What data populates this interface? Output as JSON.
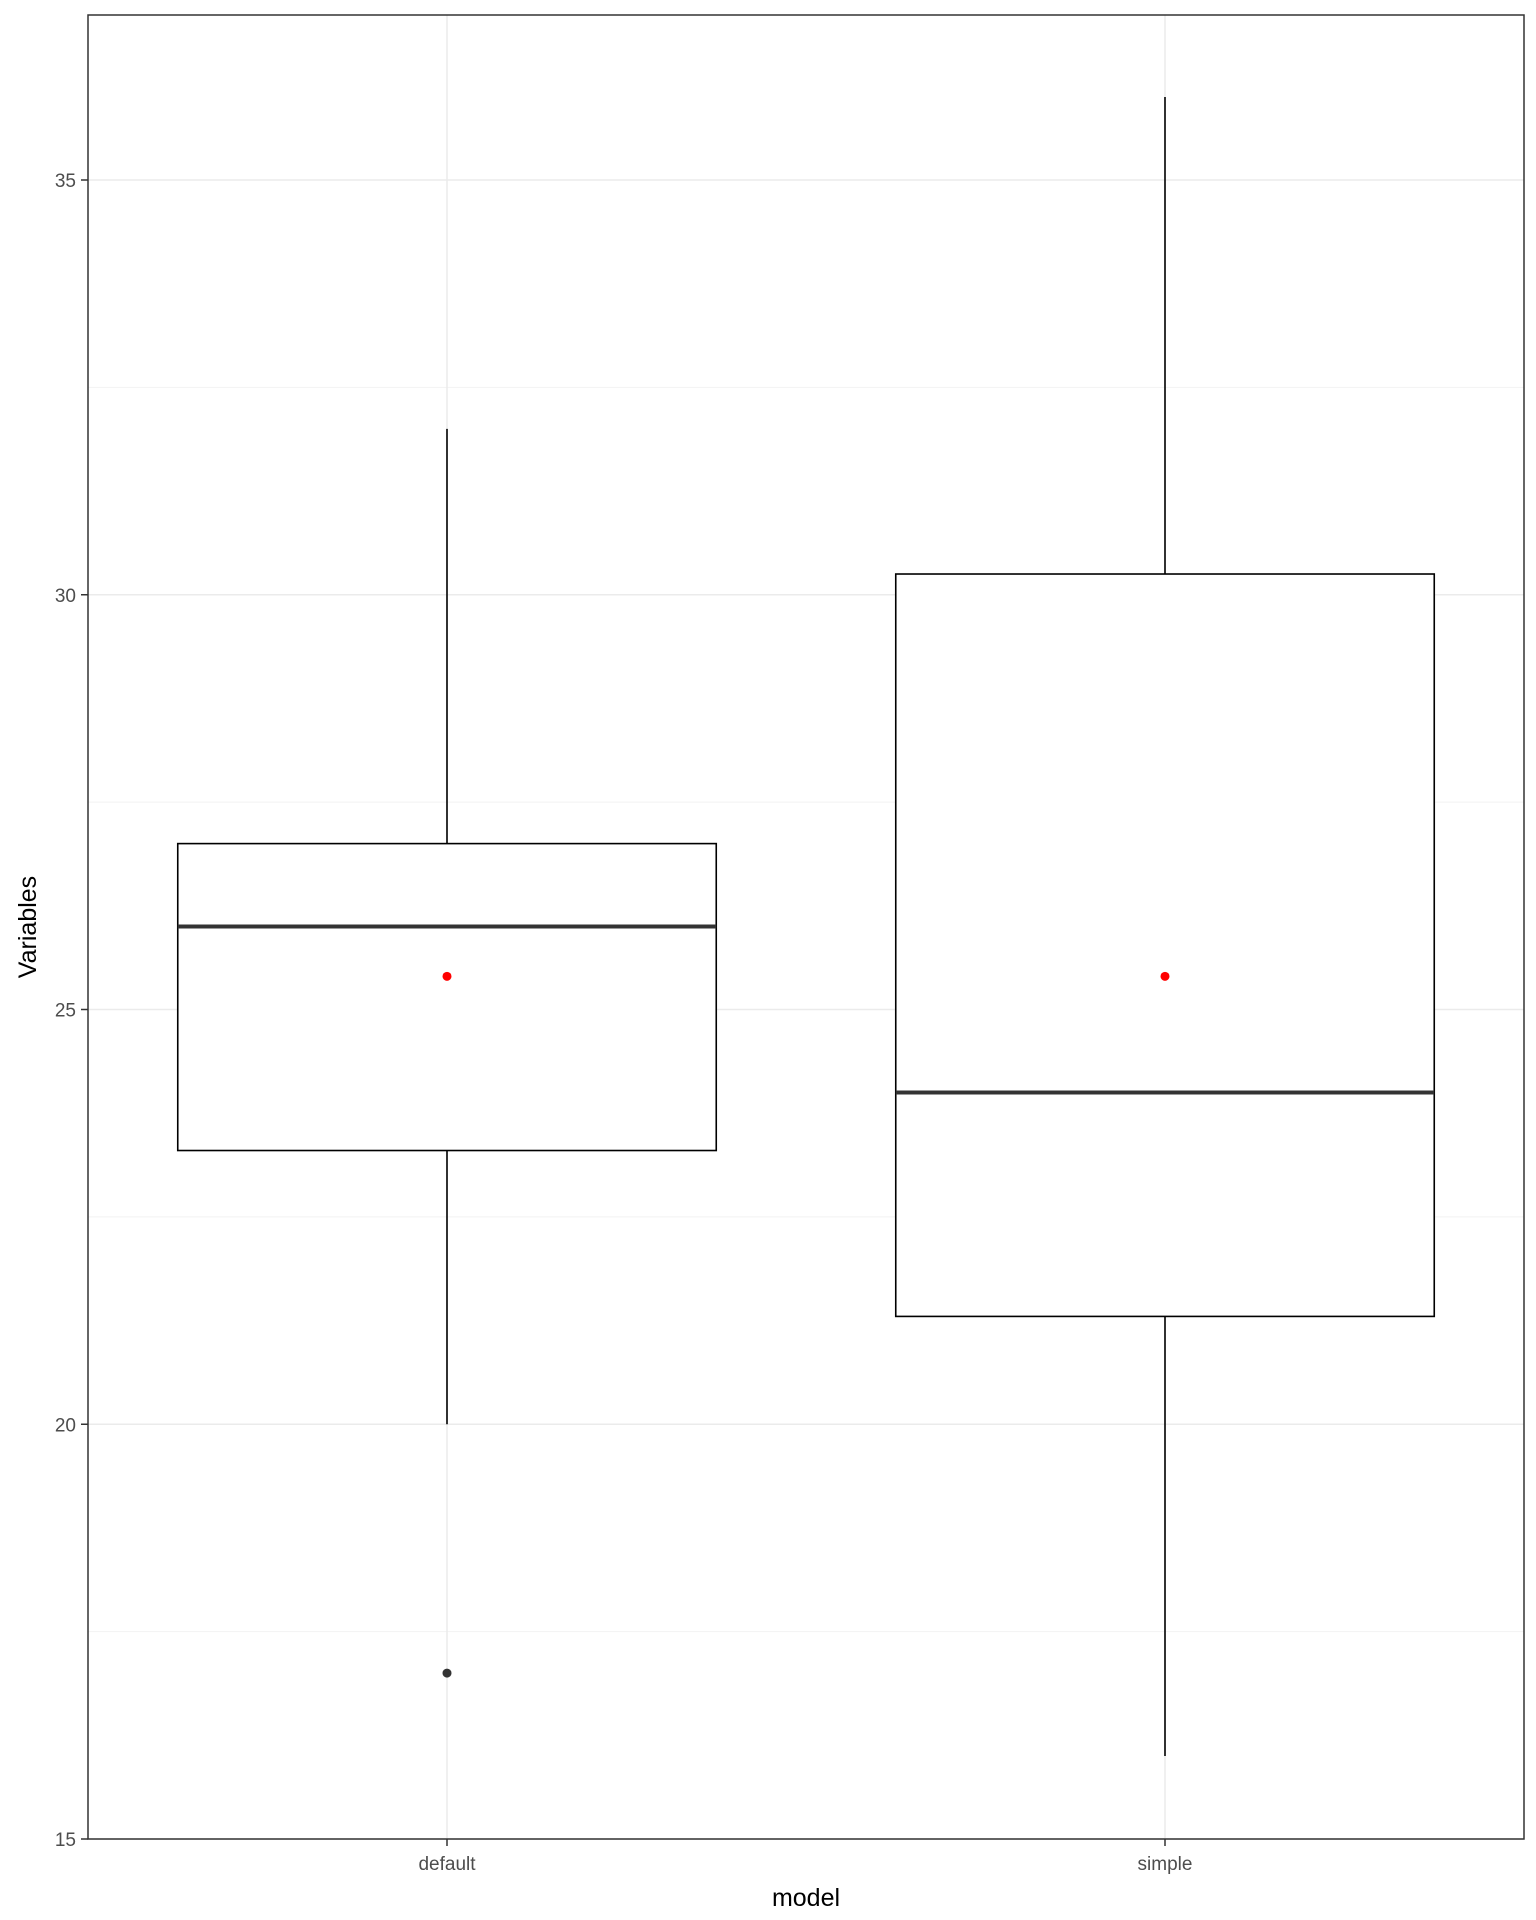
{
  "chart_data": {
    "type": "box",
    "xlabel": "model",
    "ylabel": "Variables",
    "ylim": [
      15,
      37
    ],
    "y_ticks": [
      15,
      20,
      25,
      30,
      35
    ],
    "grid": true,
    "categories": [
      "default",
      "simple"
    ],
    "boxes": [
      {
        "category": "default",
        "whisker_low": 20,
        "q1": 23.3,
        "median": 26,
        "q3": 27,
        "whisker_high": 32,
        "mean": 25.4,
        "outliers": [
          17
        ]
      },
      {
        "category": "simple",
        "whisker_low": 16,
        "q1": 21.3,
        "median": 24,
        "q3": 30.25,
        "whisker_high": 36,
        "mean": 25.4,
        "outliers": []
      }
    ],
    "colors": {
      "mean_point": "#ff0000",
      "outlier_point": "#333333",
      "box_stroke": "#000000",
      "median_line": "#333333",
      "grid_major": "#ebebeb",
      "grid_minor": "#f2f2f2",
      "panel_border": "#333333"
    }
  }
}
